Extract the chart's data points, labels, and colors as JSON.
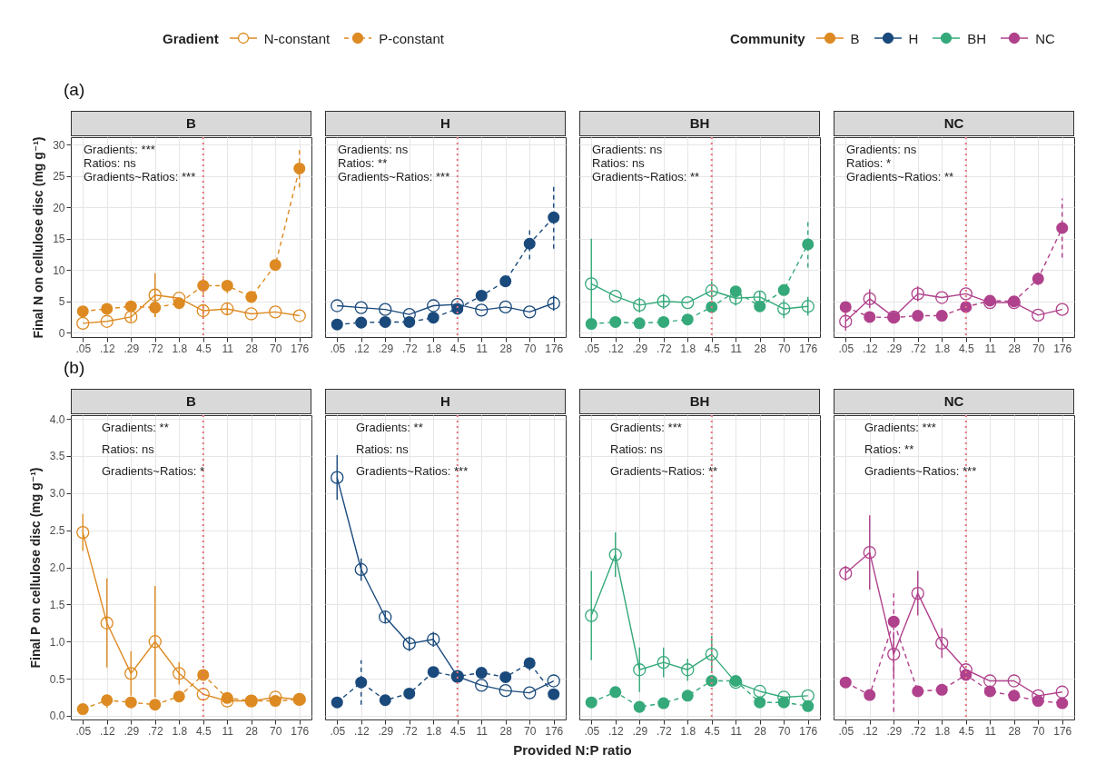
{
  "chart_data": [
    {
      "type": "other",
      "legend_title": "Community",
      "categories": [
        "B",
        "H",
        "BH",
        "NC"
      ],
      "colors": [
        "#dd8a22",
        "#1a4a7c",
        "#35a97a",
        "#b0418c"
      ]
    },
    {
      "type": "line",
      "title": "B",
      "subtitle": "(a)",
      "ylabel": "Final N on cellulose disc (mg g⁻¹)",
      "legend_title": "Gradient",
      "legend": "top",
      "categories": [
        ".05",
        ".12",
        ".29",
        ".72",
        "1.8",
        "4.5",
        "11",
        "28",
        "70",
        "176"
      ],
      "ylim": [
        -0.7,
        31.2
      ],
      "yticks": [
        0,
        5,
        10,
        15,
        20,
        25,
        30
      ],
      "grid": true,
      "marker": "circle",
      "annotations": [
        "Gradients: ***",
        "Ratios: ns",
        "Gradients~Ratios: ***"
      ],
      "ref_lines": [
        {
          "axis": "x",
          "value": "4.5",
          "color": "#e8737b",
          "line_style": "dotted"
        }
      ],
      "series": [
        {
          "name": "N-constant",
          "color": "#dd8a22",
          "line_style": "solid",
          "values": [
            1.5,
            1.8,
            2.5,
            6.0,
            5.5,
            3.5,
            3.8,
            3.0,
            3.3,
            2.7
          ],
          "errors": [
            null,
            null,
            0.8,
            3.5,
            null,
            1.0,
            1.0,
            null,
            null,
            null
          ]
        },
        {
          "name": "P-constant",
          "color": "#dd8a22",
          "line_style": "dashed",
          "values": [
            3.4,
            3.8,
            4.2,
            4.0,
            4.7,
            7.5,
            7.5,
            5.7,
            10.8,
            26.2
          ],
          "errors": [
            null,
            null,
            null,
            1.5,
            null,
            1.5,
            1.2,
            null,
            null,
            3.0
          ]
        }
      ]
    },
    {
      "type": "line",
      "title": "H",
      "tick_labels": "x",
      "categories": [
        ".05",
        ".12",
        ".29",
        ".72",
        "1.8",
        "4.5",
        "11",
        "28",
        "70",
        "176"
      ],
      "ylim": [
        -0.7,
        31.2
      ],
      "yticks": [
        0,
        5,
        10,
        15,
        20,
        25,
        30
      ],
      "grid": true,
      "marker": "circle",
      "annotations": [
        "Gradients: ns",
        "Ratios: **",
        "Gradients~Ratios: ***"
      ],
      "ref_lines": [
        {
          "axis": "x",
          "value": "4.5",
          "color": "#e8737b",
          "line_style": "dotted"
        }
      ],
      "series": [
        {
          "color": "#1a4a7c",
          "line_style": "solid",
          "values": [
            4.3,
            4.0,
            3.7,
            2.9,
            4.3,
            4.5,
            3.6,
            4.1,
            3.3,
            4.7
          ],
          "errors": [
            null,
            null,
            null,
            null,
            null,
            null,
            null,
            null,
            null,
            1.2
          ]
        },
        {
          "color": "#1a4a7c",
          "line_style": "dashed",
          "values": [
            1.3,
            1.6,
            1.7,
            1.7,
            2.4,
            3.8,
            5.9,
            8.2,
            14.2,
            18.4
          ],
          "errors": [
            null,
            null,
            null,
            null,
            null,
            null,
            null,
            0.6,
            2.5,
            5.0
          ]
        }
      ]
    },
    {
      "type": "line",
      "title": "BH",
      "tick_labels": "x",
      "categories": [
        ".05",
        ".12",
        ".29",
        ".72",
        "1.8",
        "4.5",
        "11",
        "28",
        "70",
        "176"
      ],
      "ylim": [
        -0.7,
        31.2
      ],
      "yticks": [
        0,
        5,
        10,
        15,
        20,
        25,
        30
      ],
      "grid": true,
      "marker": "circle",
      "annotations": [
        "Gradients: ns",
        "Ratios: ns",
        "Gradients~Ratios: **"
      ],
      "ref_lines": [
        {
          "axis": "x",
          "value": "4.5",
          "color": "#e8737b",
          "line_style": "dotted"
        }
      ],
      "series": [
        {
          "color": "#35a97a",
          "line_style": "solid",
          "values": [
            7.8,
            5.8,
            4.4,
            5.0,
            4.8,
            6.7,
            5.5,
            5.7,
            3.8,
            4.2
          ],
          "errors": [
            [
              0.8,
              15.0
            ],
            null,
            1.2,
            1.2,
            null,
            1.5,
            1.2,
            1.0,
            1.5,
            1.5
          ]
        },
        {
          "color": "#35a97a",
          "line_style": "dashed",
          "values": [
            1.4,
            1.7,
            1.5,
            1.7,
            2.1,
            4.1,
            6.6,
            4.2,
            6.8,
            14.1
          ],
          "errors": [
            null,
            null,
            null,
            null,
            null,
            null,
            null,
            null,
            null,
            3.7
          ]
        }
      ]
    },
    {
      "type": "line",
      "title": "NC",
      "tick_labels": "x",
      "categories": [
        ".05",
        ".12",
        ".29",
        ".72",
        "1.8",
        "4.5",
        "11",
        "28",
        "70",
        "176"
      ],
      "ylim": [
        -0.7,
        31.2
      ],
      "yticks": [
        0,
        5,
        10,
        15,
        20,
        25,
        30
      ],
      "grid": true,
      "marker": "circle",
      "annotations": [
        "Gradients: ns",
        "Ratios: *",
        "Gradients~Ratios: **"
      ],
      "ref_lines": [
        {
          "axis": "x",
          "value": "4.5",
          "color": "#e8737b",
          "line_style": "dotted"
        }
      ],
      "series": [
        {
          "color": "#b0418c",
          "line_style": "solid",
          "values": [
            1.8,
            5.4,
            2.5,
            6.2,
            5.6,
            6.2,
            4.8,
            4.8,
            2.8,
            3.7
          ],
          "errors": [
            1.5,
            1.5,
            null,
            1.2,
            null,
            null,
            null,
            null,
            null,
            null
          ]
        },
        {
          "color": "#b0418c",
          "line_style": "dashed",
          "values": [
            4.1,
            2.5,
            2.4,
            2.7,
            2.7,
            4.1,
            5.1,
            5.0,
            8.6,
            16.7
          ],
          "errors": [
            null,
            null,
            null,
            null,
            null,
            null,
            null,
            null,
            1.0,
            4.7
          ]
        }
      ]
    },
    {
      "type": "line",
      "title": "B",
      "subtitle": "(b)",
      "ylabel": "Final P on cellulose disc (mg g⁻¹)",
      "categories": [
        ".05",
        ".12",
        ".29",
        ".72",
        "1.8",
        "4.5",
        "11",
        "28",
        "70",
        "176"
      ],
      "ylim": [
        -0.05,
        4.05
      ],
      "yticks": [
        {
          "value": 0,
          "label": "0.0"
        },
        0.5,
        {
          "value": 1,
          "label": "1.0"
        },
        1.5,
        {
          "value": 2,
          "label": "2.0"
        },
        2.5,
        {
          "value": 3,
          "label": "3.0"
        },
        3.5,
        {
          "value": 4,
          "label": "4.0"
        }
      ],
      "grid": true,
      "marker": "circle",
      "annotations": [
        "Gradients: **",
        "Ratios: ns",
        "Gradients~Ratios: *"
      ],
      "ref_lines": [
        {
          "axis": "x",
          "value": "4.5",
          "color": "#e8737b",
          "line_style": "dotted"
        }
      ],
      "series": [
        {
          "color": "#dd8a22",
          "line_style": "solid",
          "values": [
            2.47,
            1.25,
            0.57,
            1.0,
            0.57,
            0.29,
            0.2,
            0.2,
            0.25,
            0.22
          ],
          "errors": [
            0.25,
            0.6,
            0.3,
            0.75,
            0.15,
            null,
            null,
            null,
            null,
            null
          ]
        },
        {
          "color": "#dd8a22",
          "line_style": "dashed",
          "values": [
            0.09,
            0.21,
            0.18,
            0.15,
            0.26,
            0.55,
            0.24,
            0.2,
            0.2,
            0.22
          ],
          "errors": [
            null,
            0.1,
            null,
            null,
            null,
            null,
            null,
            null,
            null,
            null
          ]
        }
      ]
    },
    {
      "type": "line",
      "title": "H",
      "xlabel": "Provided N:P ratio",
      "tick_labels": "x",
      "categories": [
        ".05",
        ".12",
        ".29",
        ".72",
        "1.8",
        "4.5",
        "11",
        "28",
        "70",
        "176"
      ],
      "ylim": [
        -0.05,
        4.05
      ],
      "yticks": [
        0,
        0.5,
        1,
        1.5,
        2,
        2.5,
        3,
        3.5,
        4
      ],
      "grid": true,
      "marker": "circle",
      "annotations": [
        "Gradients: **",
        "Ratios: ns",
        "Gradients~Ratios: ***"
      ],
      "ref_lines": [
        {
          "axis": "x",
          "value": "4.5",
          "color": "#e8737b",
          "line_style": "dotted"
        }
      ],
      "series": [
        {
          "color": "#1a4a7c",
          "line_style": "solid",
          "values": [
            3.21,
            1.97,
            1.33,
            0.97,
            1.03,
            0.53,
            0.41,
            0.34,
            0.31,
            0.47
          ],
          "errors": [
            0.3,
            0.15,
            0.08,
            0.1,
            0.1,
            null,
            null,
            null,
            null,
            null
          ]
        },
        {
          "color": "#1a4a7c",
          "line_style": "dashed",
          "values": [
            0.18,
            0.45,
            0.21,
            0.3,
            0.59,
            0.53,
            0.58,
            0.52,
            0.71,
            0.29
          ],
          "errors": [
            null,
            0.3,
            null,
            null,
            null,
            null,
            null,
            null,
            0.1,
            null
          ]
        }
      ]
    },
    {
      "type": "line",
      "title": "BH",
      "tick_labels": "x",
      "categories": [
        ".05",
        ".12",
        ".29",
        ".72",
        "1.8",
        "4.5",
        "11",
        "28",
        "70",
        "176"
      ],
      "ylim": [
        -0.05,
        4.05
      ],
      "yticks": [
        0,
        0.5,
        1,
        1.5,
        2,
        2.5,
        3,
        3.5,
        4
      ],
      "grid": true,
      "marker": "circle",
      "annotations": [
        "Gradients: ***",
        "Ratios: ns",
        "Gradients~Ratios: **"
      ],
      "ref_lines": [
        {
          "axis": "x",
          "value": "4.5",
          "color": "#e8737b",
          "line_style": "dotted"
        }
      ],
      "series": [
        {
          "color": "#35a97a",
          "line_style": "solid",
          "values": [
            1.35,
            2.17,
            0.62,
            0.72,
            0.62,
            0.83,
            0.45,
            0.33,
            0.25,
            0.27
          ],
          "errors": [
            0.6,
            0.3,
            0.3,
            0.2,
            0.15,
            0.25,
            null,
            null,
            null,
            null
          ]
        },
        {
          "color": "#35a97a",
          "line_style": "dashed",
          "values": [
            0.18,
            0.32,
            0.12,
            0.17,
            0.27,
            0.47,
            0.47,
            0.18,
            0.18,
            0.13
          ]
        }
      ]
    },
    {
      "type": "line",
      "title": "NC",
      "tick_labels": "x",
      "categories": [
        ".05",
        ".12",
        ".29",
        ".72",
        "1.8",
        "4.5",
        "11",
        "28",
        "70",
        "176"
      ],
      "ylim": [
        -0.05,
        4.05
      ],
      "yticks": [
        0,
        0.5,
        1,
        1.5,
        2,
        2.5,
        3,
        3.5,
        4
      ],
      "grid": true,
      "marker": "circle",
      "annotations": [
        "Gradients: ***",
        "Ratios: **",
        "Gradients~Ratios: ***"
      ],
      "ref_lines": [
        {
          "axis": "x",
          "value": "4.5",
          "color": "#e8737b",
          "line_style": "dotted"
        }
      ],
      "series": [
        {
          "color": "#b0418c",
          "line_style": "solid",
          "values": [
            1.92,
            2.2,
            0.83,
            1.65,
            0.98,
            0.62,
            0.47,
            0.47,
            0.27,
            0.32
          ],
          "errors": [
            0.1,
            0.5,
            0.3,
            0.3,
            0.2,
            null,
            null,
            null,
            null,
            null
          ]
        },
        {
          "color": "#b0418c",
          "line_style": "dashed",
          "values": [
            0.45,
            0.28,
            1.27,
            0.33,
            0.35,
            0.55,
            0.33,
            0.27,
            0.2,
            0.17
          ],
          "errors": [
            null,
            null,
            [
              0.05,
              1.65
            ],
            null,
            null,
            null,
            null,
            null,
            null,
            null
          ]
        }
      ]
    }
  ]
}
